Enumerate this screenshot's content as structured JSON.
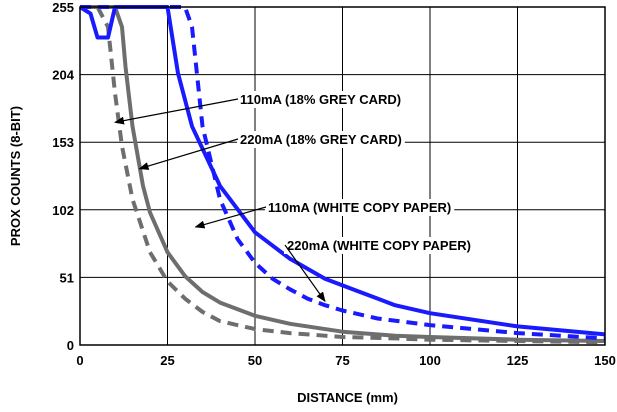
{
  "chart_data": {
    "type": "line",
    "title": "",
    "xlabel": "DISTANCE (mm)",
    "ylabel": "PROX COUNTS (8-BIT)",
    "xlim": [
      0,
      150
    ],
    "ylim": [
      0,
      255
    ],
    "x_ticks": [
      0,
      25,
      50,
      75,
      100,
      125,
      150
    ],
    "y_ticks": [
      0,
      51,
      102,
      153,
      204,
      255
    ],
    "grid": "horizontal and vertical",
    "legend": "none (inline annotations with arrows)",
    "series": [
      {
        "color": "#6e6e6e",
        "dash": "dashed",
        "x": [
          0,
          5,
          8,
          10,
          12,
          15,
          20,
          25,
          30,
          35,
          40,
          50,
          60,
          75,
          90,
          100,
          125,
          150
        ],
        "y": [
          255,
          255,
          240,
          190,
          150,
          110,
          70,
          48,
          35,
          25,
          18,
          12,
          9,
          6,
          5,
          4,
          3,
          2
        ]
      },
      {
        "color": "#6e6e6e",
        "dash": "solid",
        "x": [
          0,
          10,
          12,
          13,
          15,
          18,
          20,
          25,
          30,
          35,
          40,
          50,
          60,
          75,
          90,
          100,
          125,
          150
        ],
        "y": [
          255,
          255,
          240,
          210,
          165,
          120,
          100,
          70,
          52,
          40,
          32,
          22,
          16,
          10,
          7,
          6,
          4,
          3
        ]
      },
      {
        "color": "#1a1aff",
        "dash": "dashed",
        "x": [
          0,
          30,
          32,
          35,
          40,
          45,
          50,
          55,
          60,
          65,
          70,
          75,
          85,
          100,
          125,
          150
        ],
        "y": [
          255,
          255,
          240,
          165,
          110,
          80,
          62,
          50,
          42,
          35,
          30,
          26,
          20,
          15,
          9,
          5
        ]
      },
      {
        "color": "#1a1aff",
        "dash": "solid",
        "x": [
          0,
          3,
          5,
          8,
          10,
          25,
          28,
          32,
          40,
          50,
          60,
          70,
          80,
          90,
          100,
          125,
          150
        ],
        "y": [
          255,
          250,
          232,
          232,
          255,
          255,
          205,
          165,
          120,
          85,
          65,
          50,
          40,
          30,
          24,
          14,
          8
        ]
      }
    ],
    "annotations": [
      {
        "text": "110mA (18% GREY CARD)",
        "point_x": 10,
        "point_y": 168
      },
      {
        "text": "220mA (18% GREY CARD)",
        "point_x": 17,
        "point_y": 133
      },
      {
        "text": "110mA (WHITE COPY PAPER)",
        "point_x": 33,
        "point_y": 89
      },
      {
        "text": "220mA (WHITE COPY PAPER)",
        "point_x": 70,
        "point_y": 33
      }
    ]
  }
}
